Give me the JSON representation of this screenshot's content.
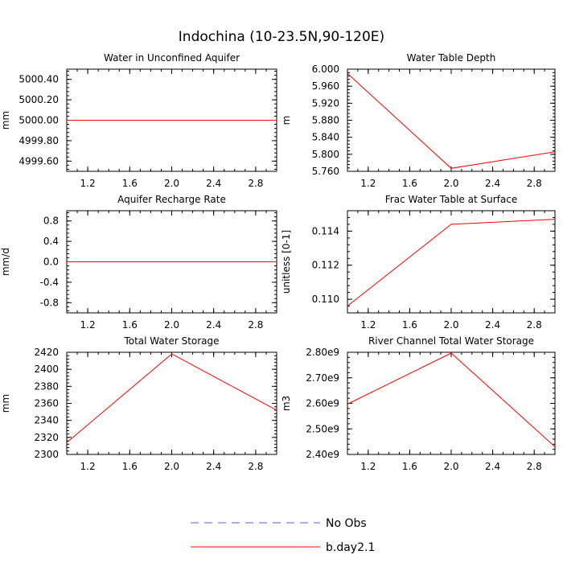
{
  "figure": {
    "title": "Indochina (10-23.5N,90-120E)"
  },
  "legend": {
    "entries": [
      {
        "label": "No Obs",
        "color": "#5b5bd6",
        "dash": "dashed"
      },
      {
        "label": "b.day2.1",
        "color": "#ff0000",
        "dash": "solid"
      }
    ]
  },
  "chart_data": [
    {
      "type": "line",
      "title": "Water in Unconfined Aquifer",
      "ylabel": "mm",
      "xlim": [
        1.0,
        3.0
      ],
      "ylim": [
        4999.5,
        5000.5
      ],
      "xticks": [
        1.2,
        1.6,
        2.0,
        2.4,
        2.8
      ],
      "xtick_labels": [
        "1.2",
        "1.6",
        "2.0",
        "2.4",
        "2.8"
      ],
      "yticks": [
        4999.6,
        4999.8,
        5000.0,
        5000.2,
        5000.4
      ],
      "ytick_labels": [
        "4999.60",
        "4999.80",
        "5000.00",
        "5000.20",
        "5000.40"
      ],
      "series": [
        {
          "name": "b.day2.1",
          "x": [
            1.0,
            2.0,
            3.0
          ],
          "y": [
            5000.0,
            5000.0,
            5000.0
          ]
        }
      ]
    },
    {
      "type": "line",
      "title": "Water Table Depth",
      "ylabel": "m",
      "xlim": [
        1.0,
        3.0
      ],
      "ylim": [
        5.76,
        6.0
      ],
      "xticks": [
        1.2,
        1.6,
        2.0,
        2.4,
        2.8
      ],
      "xtick_labels": [
        "1.2",
        "1.6",
        "2.0",
        "2.4",
        "2.8"
      ],
      "yticks": [
        5.76,
        5.8,
        5.84,
        5.88,
        5.92,
        5.96,
        6.0
      ],
      "ytick_labels": [
        "5.760",
        "5.800",
        "5.840",
        "5.880",
        "5.920",
        "5.960",
        "6.000"
      ],
      "series": [
        {
          "name": "b.day2.1",
          "x": [
            1.0,
            2.0,
            3.0
          ],
          "y": [
            5.99,
            5.767,
            5.806
          ]
        }
      ]
    },
    {
      "type": "line",
      "title": "Aquifer Recharge Rate",
      "ylabel": "mm/d",
      "xlim": [
        1.0,
        3.0
      ],
      "ylim": [
        -1.0,
        1.0
      ],
      "xticks": [
        1.2,
        1.6,
        2.0,
        2.4,
        2.8
      ],
      "xtick_labels": [
        "1.2",
        "1.6",
        "2.0",
        "2.4",
        "2.8"
      ],
      "yticks": [
        -0.8,
        -0.4,
        0.0,
        0.4,
        0.8
      ],
      "ytick_labels": [
        "-0.8",
        "-0.4",
        "0.0",
        "0.4",
        "0.8"
      ],
      "series": [
        {
          "name": "b.day2.1",
          "x": [
            1.0,
            2.0,
            3.0
          ],
          "y": [
            0.0,
            0.0,
            0.0
          ]
        }
      ]
    },
    {
      "type": "line",
      "title": "Frac Water Table at Surface",
      "ylabel": "unitless [0-1]",
      "xlim": [
        1.0,
        3.0
      ],
      "ylim": [
        0.1092,
        0.1152
      ],
      "xticks": [
        1.2,
        1.6,
        2.0,
        2.4,
        2.8
      ],
      "xtick_labels": [
        "1.2",
        "1.6",
        "2.0",
        "2.4",
        "2.8"
      ],
      "yticks": [
        0.11,
        0.112,
        0.114
      ],
      "ytick_labels": [
        "0.110",
        "0.112",
        "0.114"
      ],
      "series": [
        {
          "name": "b.day2.1",
          "x": [
            1.0,
            2.0,
            3.0
          ],
          "y": [
            0.1096,
            0.1144,
            0.1147
          ]
        }
      ]
    },
    {
      "type": "line",
      "title": "Total Water Storage",
      "ylabel": "mm",
      "xlim": [
        1.0,
        3.0
      ],
      "ylim": [
        2300,
        2420
      ],
      "xticks": [
        1.2,
        1.6,
        2.0,
        2.4,
        2.8
      ],
      "xtick_labels": [
        "1.2",
        "1.6",
        "2.0",
        "2.4",
        "2.8"
      ],
      "yticks": [
        2300,
        2320,
        2340,
        2360,
        2380,
        2400,
        2420
      ],
      "ytick_labels": [
        "2300",
        "2320",
        "2340",
        "2360",
        "2380",
        "2400",
        "2420"
      ],
      "series": [
        {
          "name": "b.day2.1",
          "x": [
            1.0,
            2.0,
            3.0
          ],
          "y": [
            2314,
            2418,
            2352
          ]
        }
      ]
    },
    {
      "type": "line",
      "title": "River Channel Total Water Storage",
      "ylabel": "m3",
      "xlim": [
        1.0,
        3.0
      ],
      "ylim": [
        2400000000,
        2800000000
      ],
      "xticks": [
        1.2,
        1.6,
        2.0,
        2.4,
        2.8
      ],
      "xtick_labels": [
        "1.2",
        "1.6",
        "2.0",
        "2.4",
        "2.8"
      ],
      "yticks": [
        2400000000,
        2500000000,
        2600000000,
        2700000000,
        2800000000
      ],
      "ytick_labels": [
        "2.40e9",
        "2.50e9",
        "2.60e9",
        "2.70e9",
        "2.80e9"
      ],
      "series": [
        {
          "name": "b.day2.1",
          "x": [
            1.0,
            2.0,
            3.0
          ],
          "y": [
            2597000000,
            2797000000,
            2430000000
          ]
        }
      ]
    }
  ]
}
